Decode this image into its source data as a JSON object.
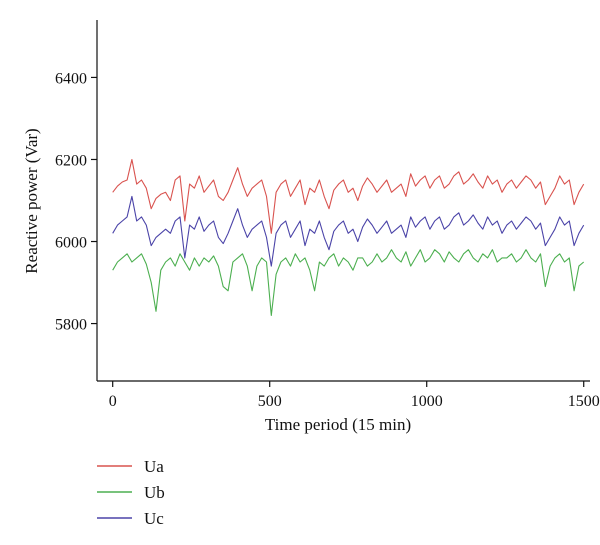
{
  "chart_data": {
    "type": "line",
    "title": "",
    "xlabel": "Time period (15 min)",
    "ylabel": "Reactive power (Var)",
    "xlim": [
      -50,
      1520
    ],
    "ylim": [
      5660,
      6540
    ],
    "x_ticks": [
      0,
      500,
      1000,
      1500
    ],
    "y_ticks": [
      5800,
      6000,
      6200,
      6400
    ],
    "grid": false,
    "legend_position": "bottom-left",
    "x_range": [
      0,
      1500
    ],
    "series": [
      {
        "name": "Ua",
        "color": "#d9534f",
        "values": [
          6120,
          6135,
          6145,
          6150,
          6200,
          6140,
          6150,
          6130,
          6080,
          6105,
          6115,
          6120,
          6100,
          6150,
          6160,
          6050,
          6140,
          6130,
          6160,
          6120,
          6135,
          6150,
          6110,
          6100,
          6120,
          6150,
          6180,
          6140,
          6110,
          6130,
          6140,
          6150,
          6110,
          6020,
          6120,
          6140,
          6150,
          6110,
          6130,
          6150,
          6090,
          6130,
          6120,
          6150,
          6110,
          6080,
          6125,
          6140,
          6150,
          6120,
          6130,
          6100,
          6135,
          6155,
          6140,
          6120,
          6135,
          6150,
          6120,
          6130,
          6140,
          6110,
          6165,
          6135,
          6150,
          6160,
          6130,
          6150,
          6160,
          6130,
          6140,
          6160,
          6170,
          6140,
          6150,
          6165,
          6145,
          6130,
          6160,
          6140,
          6150,
          6120,
          6140,
          6150,
          6130,
          6145,
          6160,
          6150,
          6130,
          6145,
          6090,
          6110,
          6130,
          6160,
          6140,
          6150,
          6090,
          6120,
          6140
        ]
      },
      {
        "name": "Ub",
        "color": "#4caf50",
        "values": [
          5930,
          5950,
          5960,
          5970,
          5950,
          5960,
          5970,
          5945,
          5900,
          5830,
          5930,
          5950,
          5960,
          5940,
          5970,
          5950,
          5930,
          5960,
          5940,
          5960,
          5950,
          5965,
          5940,
          5890,
          5880,
          5950,
          5960,
          5970,
          5940,
          5880,
          5940,
          5960,
          5950,
          5820,
          5920,
          5950,
          5960,
          5940,
          5970,
          5950,
          5960,
          5930,
          5880,
          5950,
          5940,
          5960,
          5970,
          5940,
          5960,
          5950,
          5930,
          5960,
          5960,
          5940,
          5950,
          5970,
          5950,
          5960,
          5980,
          5960,
          5950,
          5975,
          5940,
          5960,
          5980,
          5950,
          5960,
          5980,
          5970,
          5950,
          5975,
          5960,
          5950,
          5970,
          5980,
          5960,
          5950,
          5970,
          5960,
          5980,
          5950,
          5960,
          5960,
          5970,
          5950,
          5960,
          5980,
          5960,
          5950,
          5970,
          5890,
          5940,
          5960,
          5970,
          5950,
          5960,
          5880,
          5940,
          5950
        ]
      },
      {
        "name": "Uc",
        "color": "#4b44a8",
        "values": [
          6020,
          6040,
          6050,
          6060,
          6110,
          6050,
          6060,
          6040,
          5990,
          6010,
          6020,
          6030,
          6020,
          6050,
          6060,
          5960,
          6040,
          6030,
          6060,
          6025,
          6040,
          6050,
          6010,
          5995,
          6020,
          6050,
          6080,
          6040,
          6010,
          6030,
          6040,
          6050,
          6010,
          5940,
          6020,
          6040,
          6050,
          6010,
          6030,
          6050,
          5990,
          6030,
          6020,
          6050,
          6010,
          5980,
          6025,
          6040,
          6050,
          6020,
          6030,
          6000,
          6035,
          6055,
          6040,
          6020,
          6035,
          6050,
          6020,
          6030,
          6040,
          6010,
          6060,
          6035,
          6050,
          6060,
          6030,
          6050,
          6060,
          6030,
          6040,
          6060,
          6070,
          6040,
          6050,
          6065,
          6045,
          6030,
          6060,
          6040,
          6050,
          6020,
          6040,
          6050,
          6030,
          6045,
          6060,
          6050,
          6030,
          6045,
          5990,
          6010,
          6030,
          6060,
          6040,
          6050,
          5990,
          6020,
          6040
        ]
      }
    ]
  }
}
